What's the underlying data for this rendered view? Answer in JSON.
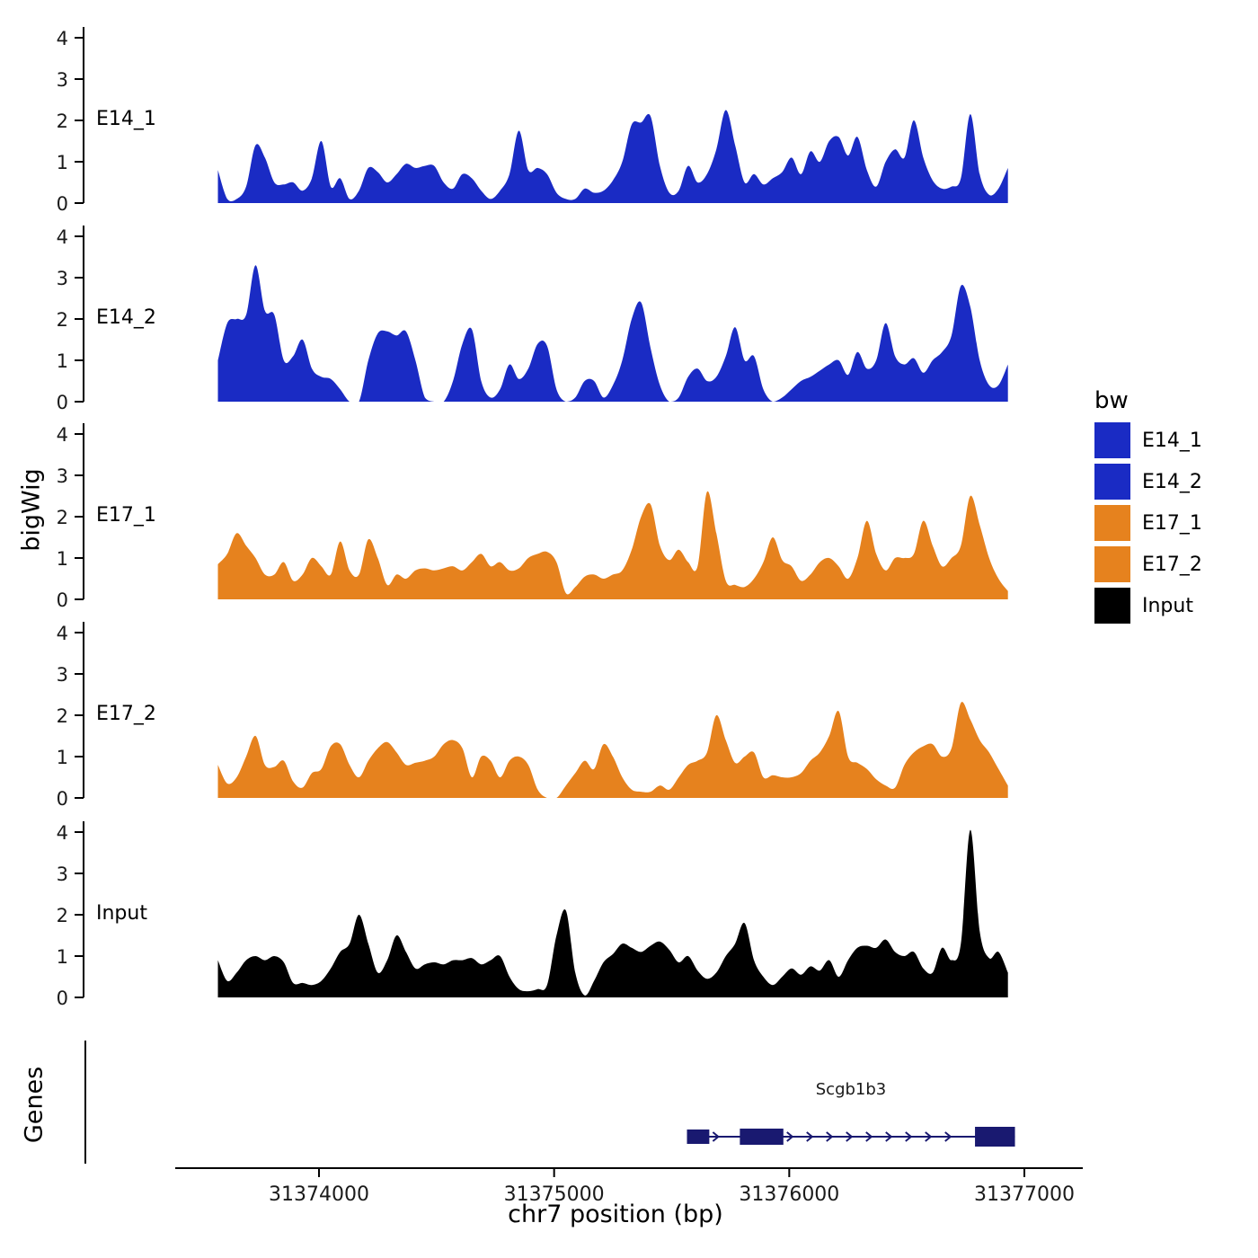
{
  "chart_data": {
    "type": "area",
    "title": "",
    "xlabel": "chr7 position (bp)",
    "ylabel": "bigWig",
    "legend_position": "right",
    "grid": "off",
    "x_ticks": [
      31374000,
      31375000,
      31376000,
      31377000
    ],
    "x_range": [
      31373390,
      31377250
    ],
    "y_ticks": [
      0,
      1,
      2,
      3,
      4
    ],
    "y_range": [
      0,
      4.3
    ],
    "x_start": 31373570,
    "x_step": 40,
    "series": [
      {
        "name": "E14_1",
        "color": "#1A2BC4",
        "values": [
          0.8,
          0.1,
          0.1,
          0.4,
          1.4,
          1.1,
          0.5,
          0.45,
          0.5,
          0.3,
          0.6,
          1.5,
          0.4,
          0.6,
          0.1,
          0.3,
          0.85,
          0.75,
          0.5,
          0.7,
          0.95,
          0.85,
          0.9,
          0.9,
          0.5,
          0.35,
          0.7,
          0.6,
          0.3,
          0.1,
          0.3,
          0.7,
          1.75,
          0.8,
          0.85,
          0.7,
          0.25,
          0.1,
          0.1,
          0.35,
          0.25,
          0.3,
          0.55,
          1.0,
          1.9,
          1.95,
          2.1,
          0.9,
          0.25,
          0.3,
          0.9,
          0.5,
          0.7,
          1.3,
          2.25,
          1.4,
          0.5,
          0.7,
          0.45,
          0.6,
          0.75,
          1.1,
          0.7,
          1.25,
          1.0,
          1.5,
          1.6,
          1.15,
          1.6,
          0.8,
          0.4,
          1.0,
          1.3,
          1.1,
          2.0,
          1.1,
          0.55,
          0.35,
          0.4,
          0.6,
          2.15,
          0.7,
          0.2,
          0.35,
          0.85
        ]
      },
      {
        "name": "E14_2",
        "color": "#1A2BC4",
        "values": [
          1.0,
          1.9,
          2.0,
          2.1,
          3.3,
          2.2,
          2.1,
          1.0,
          1.1,
          1.5,
          0.8,
          0.6,
          0.55,
          0.3,
          0.0,
          0.0,
          1.0,
          1.65,
          1.7,
          1.6,
          1.7,
          1.0,
          0.1,
          0.0,
          0.0,
          0.5,
          1.4,
          1.75,
          0.5,
          0.1,
          0.3,
          0.9,
          0.55,
          0.8,
          1.4,
          1.35,
          0.3,
          0.0,
          0.1,
          0.5,
          0.5,
          0.1,
          0.4,
          1.0,
          2.0,
          2.4,
          1.3,
          0.4,
          0.0,
          0.1,
          0.6,
          0.8,
          0.5,
          0.6,
          1.1,
          1.8,
          1.0,
          1.1,
          0.3,
          0.0,
          0.1,
          0.3,
          0.5,
          0.6,
          0.75,
          0.9,
          1.0,
          0.65,
          1.2,
          0.8,
          1.0,
          1.9,
          1.1,
          0.9,
          1.05,
          0.7,
          1.0,
          1.2,
          1.6,
          2.8,
          2.3,
          1.0,
          0.4,
          0.4,
          0.9
        ]
      },
      {
        "name": "E17_1",
        "color": "#E6821E",
        "values": [
          0.85,
          1.1,
          1.6,
          1.3,
          1.0,
          0.6,
          0.6,
          0.9,
          0.45,
          0.6,
          1.0,
          0.8,
          0.6,
          1.4,
          0.7,
          0.6,
          1.45,
          1.0,
          0.35,
          0.6,
          0.5,
          0.7,
          0.75,
          0.7,
          0.75,
          0.8,
          0.7,
          0.9,
          1.1,
          0.8,
          0.9,
          0.7,
          0.75,
          1.0,
          1.1,
          1.15,
          0.9,
          0.15,
          0.3,
          0.55,
          0.6,
          0.5,
          0.6,
          0.7,
          1.2,
          2.0,
          2.3,
          1.3,
          0.95,
          1.2,
          0.9,
          0.8,
          2.6,
          1.6,
          0.45,
          0.35,
          0.3,
          0.5,
          0.9,
          1.5,
          0.95,
          0.8,
          0.45,
          0.6,
          0.9,
          1.0,
          0.8,
          0.5,
          1.0,
          1.9,
          1.1,
          0.7,
          1.0,
          1.0,
          1.1,
          1.9,
          1.3,
          0.8,
          1.0,
          1.3,
          2.5,
          1.8,
          1.0,
          0.5,
          0.2
        ]
      },
      {
        "name": "E17_2",
        "color": "#E6821E",
        "values": [
          0.8,
          0.35,
          0.5,
          1.0,
          1.5,
          0.8,
          0.75,
          0.9,
          0.4,
          0.25,
          0.6,
          0.7,
          1.25,
          1.3,
          0.8,
          0.5,
          0.9,
          1.2,
          1.35,
          1.1,
          0.8,
          0.85,
          0.9,
          1.0,
          1.3,
          1.4,
          1.2,
          0.5,
          1.0,
          0.9,
          0.5,
          0.9,
          1.0,
          0.8,
          0.2,
          0.0,
          0.0,
          0.3,
          0.6,
          0.9,
          0.7,
          1.3,
          1.0,
          0.5,
          0.2,
          0.15,
          0.15,
          0.3,
          0.2,
          0.5,
          0.8,
          0.9,
          1.1,
          2.0,
          1.4,
          0.85,
          1.0,
          1.1,
          0.5,
          0.55,
          0.5,
          0.5,
          0.6,
          0.9,
          1.1,
          1.5,
          2.1,
          1.0,
          0.85,
          0.7,
          0.45,
          0.3,
          0.25,
          0.8,
          1.1,
          1.25,
          1.3,
          1.0,
          1.2,
          2.3,
          1.9,
          1.4,
          1.1,
          0.7,
          0.3
        ]
      },
      {
        "name": "Input",
        "color": "#000000",
        "values": [
          0.9,
          0.4,
          0.6,
          0.9,
          1.0,
          0.9,
          1.0,
          0.85,
          0.35,
          0.35,
          0.3,
          0.4,
          0.7,
          1.1,
          1.3,
          2.0,
          1.3,
          0.6,
          0.9,
          1.5,
          1.1,
          0.7,
          0.8,
          0.85,
          0.8,
          0.9,
          0.9,
          0.95,
          0.8,
          0.9,
          1.0,
          0.5,
          0.2,
          0.15,
          0.2,
          0.3,
          1.5,
          2.1,
          0.6,
          0.05,
          0.4,
          0.85,
          1.05,
          1.3,
          1.2,
          1.1,
          1.25,
          1.35,
          1.15,
          0.85,
          1.0,
          0.65,
          0.45,
          0.6,
          1.0,
          1.3,
          1.8,
          0.9,
          0.5,
          0.3,
          0.5,
          0.7,
          0.55,
          0.75,
          0.65,
          0.9,
          0.5,
          0.9,
          1.2,
          1.25,
          1.2,
          1.4,
          1.1,
          1.0,
          1.1,
          0.7,
          0.6,
          1.2,
          0.9,
          1.3,
          4.05,
          1.6,
          0.95,
          1.1,
          0.6
        ]
      }
    ],
    "genes": {
      "panel_label": "Genes",
      "gene": {
        "name": "Scgb1b3",
        "color": "#191970",
        "strand": "+",
        "start": 31375565,
        "end": 31376960,
        "exons": [
          [
            31375565,
            31375660
          ],
          [
            31375790,
            31375975
          ],
          [
            31376790,
            31376960
          ]
        ]
      }
    },
    "legend": {
      "title": "bw",
      "items": [
        {
          "label": "E14_1",
          "color": "#1A2BC4"
        },
        {
          "label": "E14_2",
          "color": "#1A2BC4"
        },
        {
          "label": "E17_1",
          "color": "#E6821E"
        },
        {
          "label": "E17_2",
          "color": "#E6821E"
        },
        {
          "label": "Input",
          "color": "#000000"
        }
      ]
    }
  }
}
